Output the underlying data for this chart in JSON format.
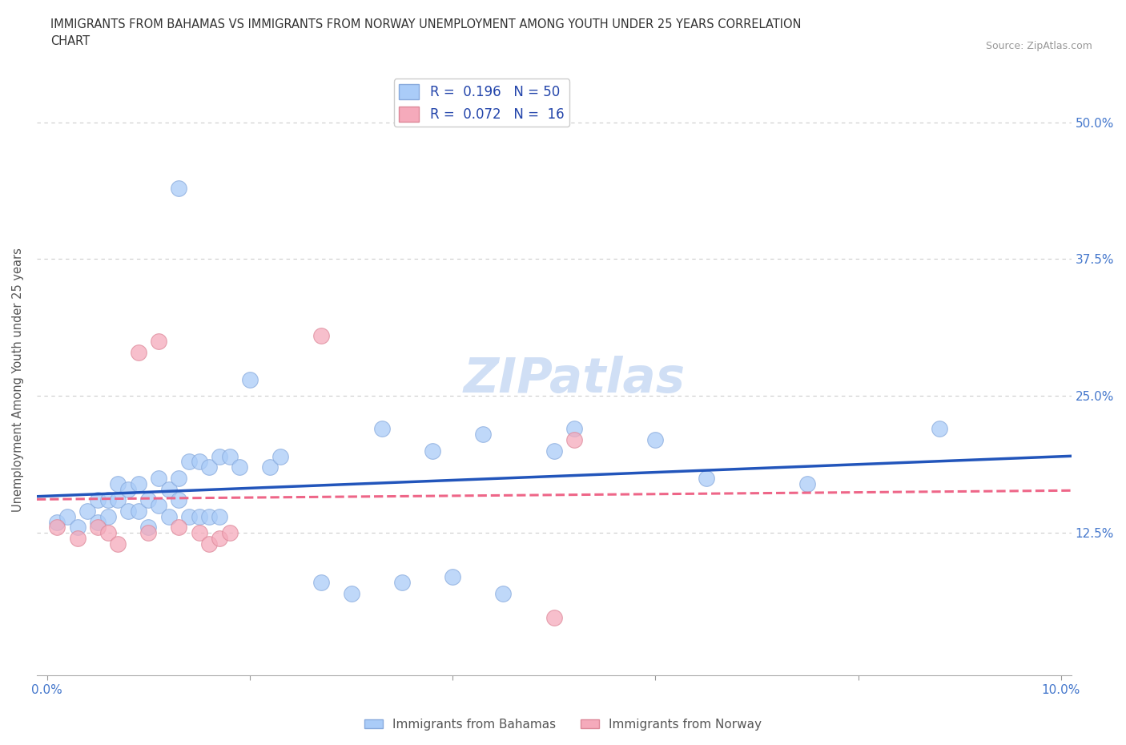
{
  "title": "IMMIGRANTS FROM BAHAMAS VS IMMIGRANTS FROM NORWAY UNEMPLOYMENT AMONG YOUTH UNDER 25 YEARS CORRELATION\nCHART",
  "source": "Source: ZipAtlas.com",
  "ylabel": "Unemployment Among Youth under 25 years",
  "xlim": [
    -0.001,
    0.101
  ],
  "ylim": [
    -0.005,
    0.535
  ],
  "bahamas_R": 0.196,
  "bahamas_N": 50,
  "norway_R": 0.072,
  "norway_N": 16,
  "bahamas_color": "#aaccf8",
  "norway_color": "#f5aabb",
  "bahamas_edge_color": "#88aadd",
  "norway_edge_color": "#dd8899",
  "bahamas_line_color": "#2255bb",
  "norway_line_color": "#ee6688",
  "watermark_color": "#d0dff5",
  "bahamas_x": [
    0.001,
    0.002,
    0.003,
    0.004,
    0.005,
    0.005,
    0.006,
    0.006,
    0.007,
    0.007,
    0.008,
    0.008,
    0.009,
    0.009,
    0.01,
    0.01,
    0.011,
    0.011,
    0.012,
    0.012,
    0.013,
    0.013,
    0.013,
    0.014,
    0.014,
    0.015,
    0.015,
    0.016,
    0.016,
    0.017,
    0.017,
    0.018,
    0.019,
    0.02,
    0.022,
    0.023,
    0.027,
    0.03,
    0.033,
    0.035,
    0.038,
    0.04,
    0.043,
    0.045,
    0.05,
    0.052,
    0.06,
    0.065,
    0.075,
    0.088
  ],
  "bahamas_y": [
    0.135,
    0.14,
    0.13,
    0.145,
    0.155,
    0.135,
    0.14,
    0.155,
    0.155,
    0.17,
    0.145,
    0.165,
    0.145,
    0.17,
    0.13,
    0.155,
    0.15,
    0.175,
    0.14,
    0.165,
    0.155,
    0.175,
    0.44,
    0.14,
    0.19,
    0.14,
    0.19,
    0.14,
    0.185,
    0.14,
    0.195,
    0.195,
    0.185,
    0.265,
    0.185,
    0.195,
    0.08,
    0.07,
    0.22,
    0.08,
    0.2,
    0.085,
    0.215,
    0.07,
    0.2,
    0.22,
    0.21,
    0.175,
    0.17,
    0.22
  ],
  "norway_x": [
    0.001,
    0.003,
    0.005,
    0.006,
    0.007,
    0.009,
    0.01,
    0.011,
    0.013,
    0.015,
    0.016,
    0.017,
    0.018,
    0.027,
    0.05,
    0.052
  ],
  "norway_y": [
    0.13,
    0.12,
    0.13,
    0.125,
    0.115,
    0.29,
    0.125,
    0.3,
    0.13,
    0.125,
    0.115,
    0.12,
    0.125,
    0.305,
    0.048,
    0.21
  ]
}
